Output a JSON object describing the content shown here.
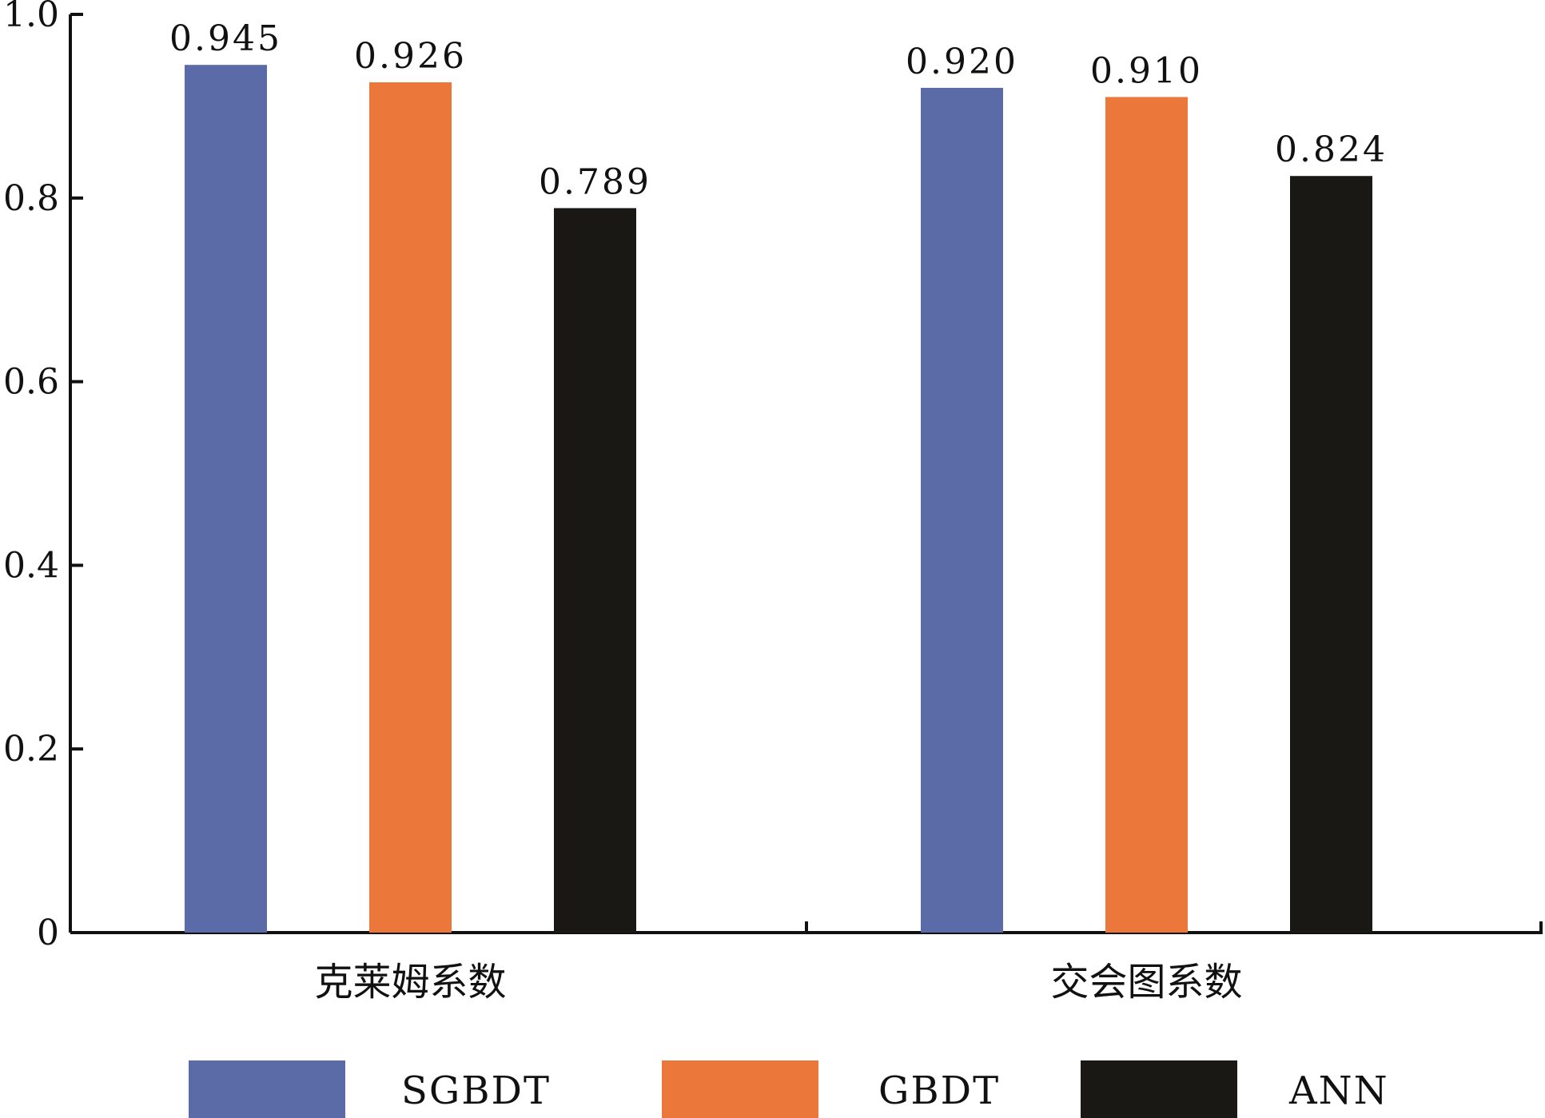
{
  "chart_data": {
    "type": "bar",
    "categories": [
      "克莱姆系数",
      "交会图系数"
    ],
    "series": [
      {
        "name": "SGBDT",
        "color": "#5a6ba7",
        "values": [
          0.945,
          0.92
        ],
        "labels": [
          "0.945",
          "0.920"
        ]
      },
      {
        "name": "GBDT",
        "color": "#ec773a",
        "values": [
          0.926,
          0.91
        ],
        "labels": [
          "0.926",
          "0.910"
        ]
      },
      {
        "name": "ANN",
        "color": "#1a1814",
        "values": [
          0.789,
          0.824
        ],
        "labels": [
          "0.789",
          "0.824"
        ]
      }
    ],
    "y_ticks": [
      "0",
      "0.2",
      "0.4",
      "0.6",
      "0.8",
      "1.0"
    ],
    "ylim": [
      0,
      1.0
    ],
    "xlabel": "",
    "ylabel": "",
    "title": "",
    "grid": false,
    "legend_position": "bottom"
  }
}
